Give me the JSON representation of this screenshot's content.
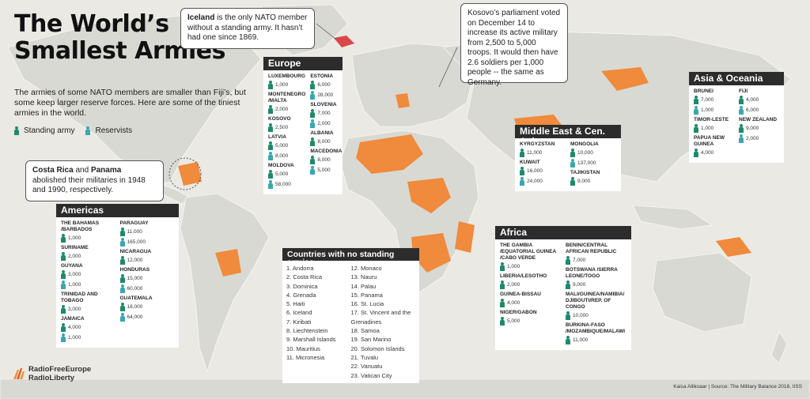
{
  "title_line1": "The World’s",
  "title_line2": "Smallest Armies",
  "subtitle": "The armies of some NATO members are smaller than Fiji’s, but some keep larger reserve forces. Here are some of the tiniest armies in the world.",
  "legend": {
    "standing": "Standing army",
    "reserve": "Reservists"
  },
  "colors": {
    "highlight": "#f08a3c",
    "iceland": "#d9474a",
    "land": "#d9d9d4",
    "ocean": "#eae9e4",
    "standing": "#1f8a6b",
    "reserve": "#3aa7b0",
    "header": "#2c2c2c"
  },
  "callouts": {
    "iceland_bold": "Iceland",
    "iceland_rest": " is the only NATO member without a standing army. It hasn’t had one since 1869.",
    "kosovo": "Kosovo’s parliament voted on December 14 to increase its active military from 2,500 to 5,000 troops. It would then have 2.6 soldiers per 1,000 people -- the same as Germany.",
    "costa_bold1": "Costa Rica",
    "costa_and": " and ",
    "costa_bold2": "Panama",
    "costa_rest": " abolished their militaries in 1948 and 1990, respectively."
  },
  "panels": {
    "europe": {
      "title": "Europe",
      "col1": [
        {
          "name": "LUXEMBOURG",
          "standing": "1,000"
        },
        {
          "name": "MONTENEGRO /MALTA",
          "standing": "2,000"
        },
        {
          "name": "KOSOVO",
          "standing": "2,500"
        },
        {
          "name": "LATVIA",
          "standing": "5,000",
          "reserve": "8,000"
        },
        {
          "name": "MOLDOVA",
          "standing": "5,000",
          "reserve": "58,000"
        }
      ],
      "col2": [
        {
          "name": "ESTONIA",
          "standing": "6,000",
          "reserve": "28,000"
        },
        {
          "name": "SLOVENIA",
          "standing": "7,000",
          "reserve": "2,000"
        },
        {
          "name": "ALBANIA",
          "standing": "8,000"
        },
        {
          "name": "MACEDONIA",
          "standing": "8,000",
          "reserve": "5,000"
        }
      ]
    },
    "asia": {
      "title": "Asia & Oceania",
      "col1": [
        {
          "name": "BRUNEI",
          "standing": "7,000",
          "reserve": "1,000"
        },
        {
          "name": "TIMOR-LESTE",
          "standing": "1,000"
        },
        {
          "name": "PAPUA NEW GUINEA",
          "standing": "4,000"
        }
      ],
      "col2": [
        {
          "name": "FIJI",
          "standing": "4,000",
          "reserve": "6,000"
        },
        {
          "name": "NEW ZEALAND",
          "standing": "9,000",
          "reserve": "2,000"
        }
      ]
    },
    "mideast": {
      "title": "Middle East & Cen. Asia",
      "col1": [
        {
          "name": "KYRGYZSTAN",
          "standing": "11,000"
        },
        {
          "name": "KUWAIT",
          "standing": "16,000",
          "reserve": "24,000"
        }
      ],
      "col2": [
        {
          "name": "MONGOLIA",
          "standing": "10,000",
          "reserve": "137,000"
        },
        {
          "name": "TAJIKISTAN",
          "standing": "9,000"
        }
      ]
    },
    "americas": {
      "title": "Americas",
      "col1": [
        {
          "name": "THE BAHAMAS /BARBADOS",
          "standing": "1,000"
        },
        {
          "name": "SURINAME",
          "standing": "2,000"
        },
        {
          "name": "GUYANA",
          "standing": "3,000",
          "reserve": "1,000"
        },
        {
          "name": "TRINIDAD AND TOBAGO",
          "standing": "3,000"
        },
        {
          "name": "JAMAICA",
          "standing": "4,000",
          "reserve": "1,000"
        }
      ],
      "col2": [
        {
          "name": "PARAGUAY",
          "standing": "11,000",
          "reserve": "165,000"
        },
        {
          "name": "NICARAGUA",
          "standing": "12,000"
        },
        {
          "name": "HONDURAS",
          "standing": "15,000",
          "reserve": "60,000"
        },
        {
          "name": "GUATEMALA",
          "standing": "18,000",
          "reserve": "64,000"
        }
      ]
    },
    "africa": {
      "title": "Africa",
      "col1": [
        {
          "name": "THE GAMBIA /EQUATORIAL GUINEA /CABO VERDE",
          "standing": "1,000"
        },
        {
          "name": "LIBERIA/LESOTHO",
          "standing": "2,000"
        },
        {
          "name": "GUINEA-BISSAU",
          "standing": "4,000"
        },
        {
          "name": "NIGER/GABON",
          "standing": "5,000"
        }
      ],
      "col2": [
        {
          "name": "BENIN/CENTRAL AFRICAN REPUBLIC",
          "standing": "7,000"
        },
        {
          "name": "BOTSWANA /SIERRA LEONE/TOGO",
          "standing": "9,000"
        },
        {
          "name": "MALI/GUINEA/NAMIBIA/ DJIBOUTI/REP. OF CONGO",
          "standing": "10,000"
        },
        {
          "name": "BURKINA-FASO /MOZAMBIQUE/MALAWI",
          "standing": "11,000"
        }
      ]
    }
  },
  "no_army": {
    "title": "Countries with no standing armies",
    "col1": [
      "1. Andorra",
      "2. Costa Rica",
      "3. Dominica",
      "4. Grenada",
      "5. Haiti",
      "6. Iceland",
      "7. Kiribati",
      "8. Liechtenstein",
      "9. Marshall Islands",
      "10. Mauritius",
      "11. Micronesia"
    ],
    "col2": [
      "12. Monaco",
      "13. Nauru",
      "14. Palau",
      "15. Panama",
      "16. St. Lucia",
      "17. St. Vincent and the Grenadines",
      "18. Samoa",
      "19. San Marino",
      "20. Solomon Islands",
      "21. Tuvalu",
      "22. Vanuatu",
      "23. Vatican City"
    ]
  },
  "logo_line1": "RadioFreeEurope",
  "logo_line2": "RadioLiberty",
  "credit": "Kaisa Alliksaar | Source: The Military Balance 2018, IISS"
}
